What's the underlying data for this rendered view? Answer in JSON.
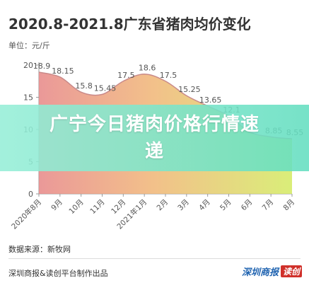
{
  "title": "2020.8-2021.8广东省猪肉均价变化",
  "unit_label": "单位：元/斤",
  "source": "数据来源：新牧网",
  "credit": "深圳商报&读创平台制作出品",
  "logo": {
    "text": "深圳商报",
    "badge": "读创"
  },
  "banner_text": "广宁今日猪肉价格行情速递",
  "colors": {
    "line": "#c98a8a",
    "fill_left": "#e88d8d",
    "fill_mid": "#f1b97d",
    "fill_right": "#d6ec6a",
    "axis": "#9a9a9a",
    "text": "#555555",
    "banner": "#7fe3c8"
  },
  "chart_data": {
    "type": "area",
    "categories": [
      "2020年8月",
      "9月",
      "10月",
      "11月",
      "12月",
      "2021年1月",
      "2月",
      "3月",
      "4月",
      "5月",
      "6月",
      "7月",
      "8月"
    ],
    "values": [
      18.9,
      18.15,
      15.8,
      15.45,
      17.5,
      18.6,
      17.5,
      15.25,
      13.65,
      12.1,
      9.6,
      8.85,
      8.55
    ],
    "labels": [
      "18.9",
      "18.15",
      "15.8",
      "15.45",
      "17.5",
      "18.6",
      "17.5",
      "15.25",
      "13.65",
      "12.1",
      "",
      "8.85",
      "8.55"
    ],
    "y_ticks": [
      "0",
      "5",
      "10",
      "15",
      "20"
    ],
    "ylim": [
      0,
      20
    ],
    "grid": false
  }
}
